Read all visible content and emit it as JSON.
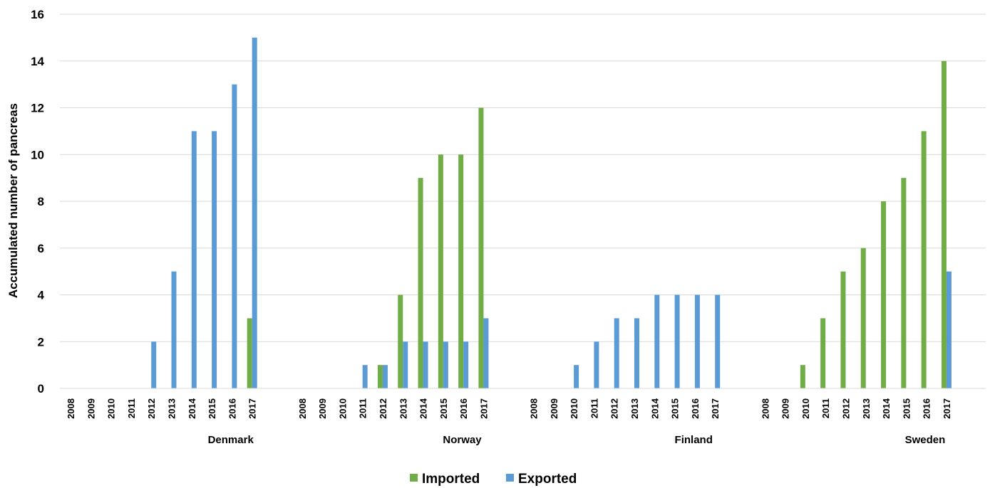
{
  "chart_data": {
    "type": "bar",
    "ylabel": "Accumulated number of pancreas",
    "xlabel": "",
    "title": "",
    "ylim": [
      0,
      16
    ],
    "yticks": [
      "0",
      "2",
      "4",
      "6",
      "8",
      "10",
      "12",
      "14",
      "16"
    ],
    "grid": true,
    "legend_position": "bottom-center",
    "years": [
      "2008",
      "2009",
      "2010",
      "2011",
      "2012",
      "2013",
      "2014",
      "2015",
      "2016",
      "2017"
    ],
    "series_meta": [
      {
        "name": "Imported",
        "color": "#70AD47"
      },
      {
        "name": "Exported",
        "color": "#5B9BD5"
      }
    ],
    "groups": [
      {
        "label": "Denmark",
        "imported": [
          0,
          0,
          0,
          0,
          0,
          0,
          0,
          0,
          0,
          3
        ],
        "exported": [
          0,
          0,
          0,
          0,
          2,
          5,
          11,
          11,
          13,
          15
        ]
      },
      {
        "label": "Norway",
        "imported": [
          0,
          0,
          0,
          0,
          1,
          4,
          9,
          10,
          10,
          12
        ],
        "exported": [
          0,
          0,
          0,
          1,
          1,
          2,
          2,
          2,
          2,
          3
        ]
      },
      {
        "label": "Finland",
        "imported": [
          0,
          0,
          0,
          0,
          0,
          0,
          0,
          0,
          0,
          0
        ],
        "exported": [
          0,
          0,
          1,
          2,
          3,
          3,
          4,
          4,
          4,
          4
        ]
      },
      {
        "label": "Sweden",
        "imported": [
          0,
          0,
          1,
          3,
          5,
          6,
          8,
          9,
          11,
          14
        ],
        "exported": [
          0,
          0,
          0,
          0,
          0,
          0,
          0,
          0,
          0,
          5
        ]
      }
    ]
  }
}
